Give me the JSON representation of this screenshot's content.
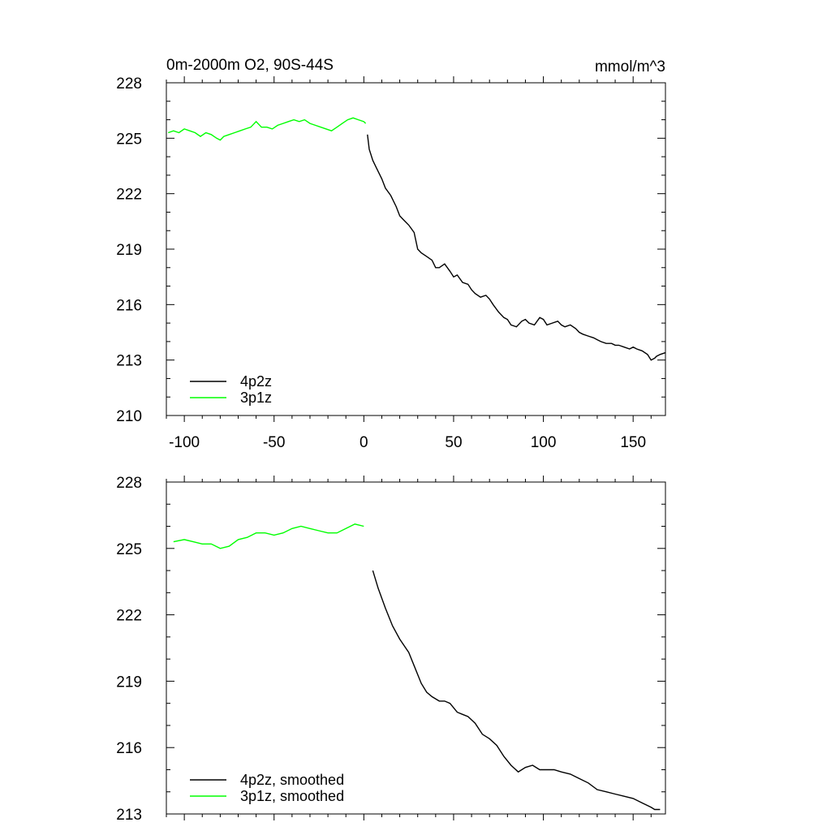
{
  "chart_data": [
    {
      "type": "line",
      "title_left": "0m-2000m O2, 90S-44S",
      "title_right": "mmol/m^3",
      "xlabel": "",
      "ylabel": "",
      "xlim": [
        -110,
        168
      ],
      "ylim": [
        210,
        228
      ],
      "xticks": [
        -100,
        -50,
        0,
        50,
        100,
        150
      ],
      "xtick_labels": [
        "-100",
        "-50",
        "0",
        "50",
        "100",
        "150"
      ],
      "yticks": [
        210,
        213,
        216,
        219,
        222,
        225,
        228
      ],
      "ytick_labels": [
        "210",
        "213",
        "216",
        "219",
        "222",
        "225",
        "228"
      ],
      "legend_position": "bottom-left",
      "series": [
        {
          "name": "4p2z",
          "color": "#000000",
          "x": [
            2,
            3,
            5,
            7,
            10,
            12,
            15,
            18,
            20,
            22,
            25,
            28,
            30,
            32,
            35,
            38,
            40,
            42,
            45,
            48,
            50,
            52,
            55,
            58,
            60,
            62,
            65,
            68,
            70,
            72,
            75,
            78,
            80,
            82,
            85,
            88,
            90,
            92,
            95,
            98,
            100,
            102,
            105,
            108,
            110,
            112,
            115,
            118,
            120,
            122,
            125,
            128,
            130,
            132,
            135,
            138,
            140,
            142,
            145,
            148,
            150,
            152,
            155,
            158,
            160,
            162,
            163,
            165,
            168
          ],
          "values": [
            225.2,
            224.4,
            223.8,
            223.4,
            222.8,
            222.3,
            221.9,
            221.3,
            220.8,
            220.6,
            220.3,
            219.9,
            219.0,
            218.8,
            218.6,
            218.4,
            218.0,
            218.0,
            218.2,
            217.8,
            217.5,
            217.6,
            217.2,
            217.1,
            216.8,
            216.6,
            216.4,
            216.5,
            216.3,
            216.0,
            215.6,
            215.3,
            215.2,
            214.9,
            214.8,
            215.1,
            215.2,
            215.0,
            214.9,
            215.3,
            215.2,
            214.9,
            215.0,
            215.1,
            214.9,
            214.8,
            214.9,
            214.7,
            214.5,
            214.4,
            214.3,
            214.2,
            214.1,
            214.0,
            213.9,
            213.9,
            213.8,
            213.8,
            213.7,
            213.6,
            213.7,
            213.6,
            213.5,
            213.3,
            213.0,
            213.1,
            213.2,
            213.3,
            213.4
          ]
        },
        {
          "name": "3p1z",
          "color": "#00ff00",
          "x": [
            -109,
            -106,
            -103,
            -100,
            -97,
            -94,
            -91,
            -88,
            -85,
            -82,
            -80,
            -78,
            -75,
            -72,
            -69,
            -66,
            -63,
            -60,
            -57,
            -54,
            -51,
            -48,
            -45,
            -42,
            -39,
            -36,
            -33,
            -30,
            -27,
            -24,
            -21,
            -18,
            -15,
            -12,
            -9,
            -6,
            -3,
            0,
            1
          ],
          "values": [
            225.3,
            225.4,
            225.3,
            225.5,
            225.4,
            225.3,
            225.1,
            225.3,
            225.2,
            225.0,
            224.9,
            225.1,
            225.2,
            225.3,
            225.4,
            225.5,
            225.6,
            225.9,
            225.6,
            225.6,
            225.5,
            225.7,
            225.8,
            225.9,
            226.0,
            225.9,
            226.0,
            225.8,
            225.7,
            225.6,
            225.5,
            225.4,
            225.6,
            225.8,
            226.0,
            226.1,
            226.0,
            225.9,
            225.8
          ]
        }
      ]
    },
    {
      "type": "line",
      "title_left": "",
      "title_right": "",
      "xlabel": "",
      "ylabel": "",
      "xlim": [
        -110,
        168
      ],
      "ylim": [
        213,
        228
      ],
      "xticks": [
        -100,
        -50,
        0,
        50,
        100,
        150
      ],
      "xtick_labels": [],
      "yticks": [
        213,
        216,
        219,
        222,
        225,
        228
      ],
      "ytick_labels": [
        "213",
        "216",
        "219",
        "222",
        "225",
        "228"
      ],
      "legend_position": "bottom-left",
      "series": [
        {
          "name": "4p2z, smoothed",
          "color": "#000000",
          "x": [
            5,
            8,
            12,
            16,
            20,
            25,
            28,
            32,
            35,
            38,
            42,
            45,
            48,
            52,
            55,
            58,
            62,
            66,
            70,
            74,
            78,
            82,
            86,
            90,
            94,
            98,
            102,
            106,
            110,
            115,
            120,
            125,
            130,
            135,
            140,
            145,
            150,
            155,
            160,
            162,
            165
          ],
          "values": [
            224.0,
            223.2,
            222.3,
            221.5,
            220.9,
            220.3,
            219.7,
            218.9,
            218.5,
            218.3,
            218.1,
            218.1,
            218.0,
            217.6,
            217.5,
            217.4,
            217.1,
            216.6,
            216.4,
            216.1,
            215.6,
            215.2,
            214.9,
            215.1,
            215.2,
            215.0,
            215.0,
            215.0,
            214.9,
            214.8,
            214.6,
            214.4,
            214.1,
            214.0,
            213.9,
            213.8,
            213.7,
            213.5,
            213.3,
            213.2,
            213.2
          ]
        },
        {
          "name": "3p1z, smoothed",
          "color": "#00ff00",
          "x": [
            -106,
            -100,
            -95,
            -90,
            -85,
            -80,
            -75,
            -70,
            -65,
            -60,
            -55,
            -50,
            -45,
            -40,
            -35,
            -30,
            -25,
            -20,
            -15,
            -10,
            -5,
            0
          ],
          "values": [
            225.3,
            225.4,
            225.3,
            225.2,
            225.2,
            225.0,
            225.1,
            225.4,
            225.5,
            225.7,
            225.7,
            225.6,
            225.7,
            225.9,
            226.0,
            225.9,
            225.8,
            225.7,
            225.7,
            225.9,
            226.1,
            226.0
          ]
        }
      ]
    }
  ]
}
